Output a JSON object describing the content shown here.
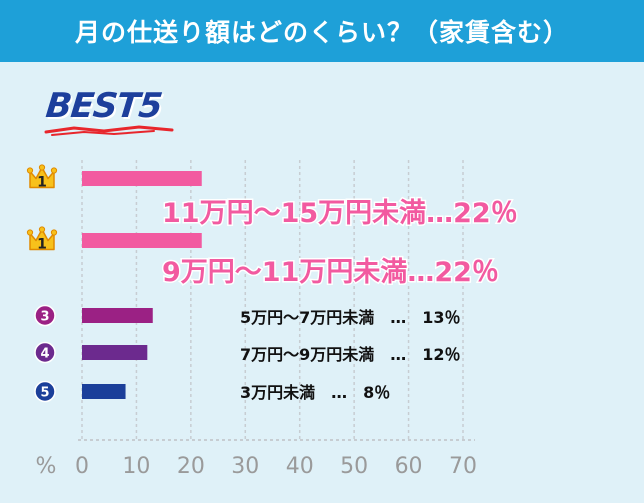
{
  "header": {
    "title": "月の仕送り額はどのくらい？（家賃含む）"
  },
  "best_label": "BEST5",
  "colors": {
    "header_bg": "#1ea0d8",
    "background": "#dff1f8",
    "pink": "#f25aa0",
    "purple3": "#9b2184",
    "purple4": "#6c2a8e",
    "blue5": "#1b3f9a",
    "gold": "#f7c11b"
  },
  "chart_data": {
    "type": "bar",
    "orientation": "horizontal",
    "title": "月の仕送り額はどのくらい？（家賃含む）",
    "xlabel": "%",
    "xlim": [
      0,
      70
    ],
    "xticks": [
      0,
      10,
      20,
      30,
      40,
      50,
      60,
      70
    ],
    "grid": true,
    "legend": "none",
    "categories": [
      "11万円〜15万円未満",
      "9万円〜11万円未満",
      "5万円〜7万円未満",
      "7万円〜9万円未満",
      "3万円未満"
    ],
    "ranks": [
      "1",
      "1",
      "3",
      "4",
      "5"
    ],
    "values": [
      22,
      22,
      13,
      12,
      8
    ],
    "labels": [
      "11万円〜15万円未満…22％",
      "9万円〜11万円未満…22％",
      "5万円〜7万円未満　…　13％",
      "7万円〜9万円未満　…　12％",
      "3万円未満　…　8％"
    ]
  }
}
